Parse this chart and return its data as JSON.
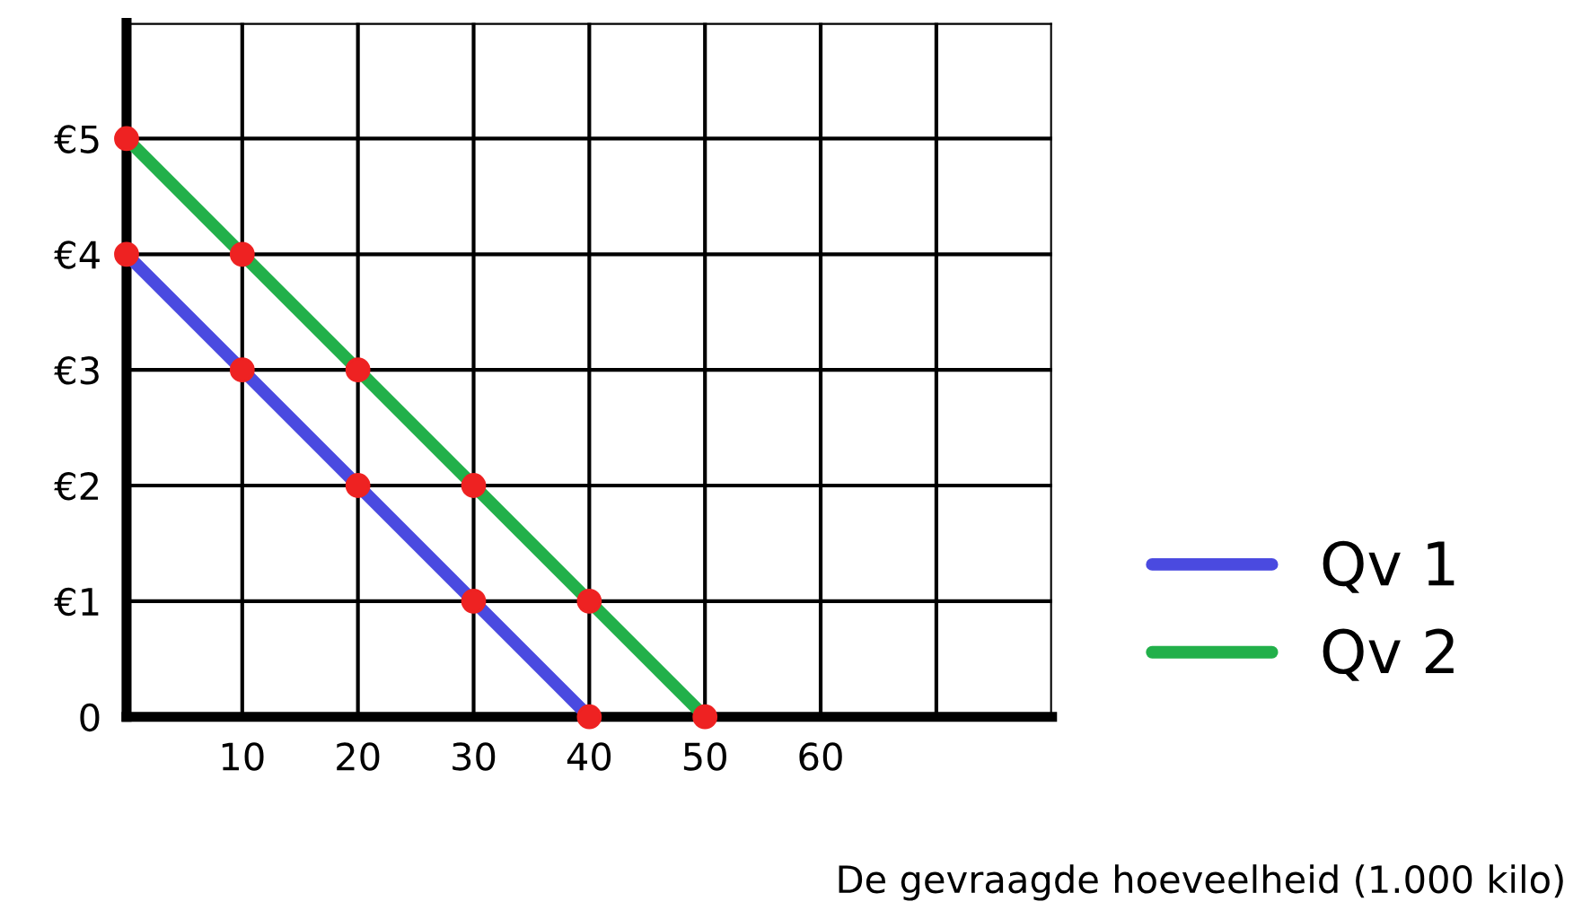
{
  "chart_data": {
    "type": "line",
    "xlabel": "De gevraagde hoeveelheid (1.000 kilo)",
    "series": [
      {
        "name": "Qv 1",
        "color": "#4a4ae0",
        "x": [
          0,
          10,
          20,
          30,
          40
        ],
        "values": [
          4,
          3,
          2,
          1,
          0
        ]
      },
      {
        "name": "Qv 2",
        "color": "#22b04a",
        "x": [
          0,
          10,
          20,
          30,
          40,
          50
        ],
        "values": [
          5,
          4,
          3,
          2,
          1,
          0
        ]
      }
    ],
    "xlim": [
      0,
      80
    ],
    "ylim": [
      0,
      6
    ],
    "xticks": [
      10,
      20,
      30,
      40,
      50,
      60,
      {
        "value": 70,
        "label": null
      },
      {
        "value": 80,
        "label": null
      }
    ],
    "yticks": [
      {
        "value": 0,
        "label": "0"
      },
      {
        "value": 1,
        "label": "€1"
      },
      {
        "value": 2,
        "label": "€2"
      },
      {
        "value": 3,
        "label": "€3"
      },
      {
        "value": 4,
        "label": "€4"
      },
      {
        "value": 5,
        "label": "€5"
      },
      {
        "value": 6,
        "label": null
      }
    ],
    "grid": true,
    "legend": "right",
    "marker": "circle",
    "line_style": "solid"
  }
}
